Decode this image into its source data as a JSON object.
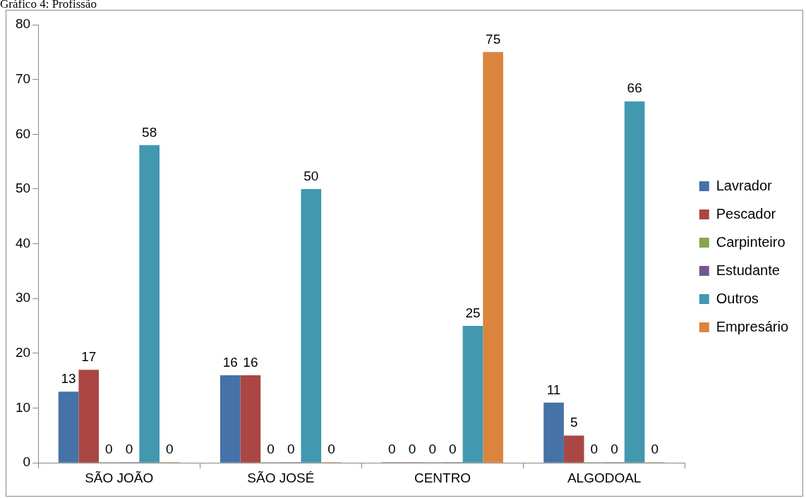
{
  "chart_data": {
    "type": "bar",
    "title": "Gráfico 4: Profissão",
    "categories": [
      "SÃO JOÃO",
      "SÃO JOSÉ",
      "CENTRO",
      "ALGODOAL"
    ],
    "series": [
      {
        "name": "Lavrador",
        "color": "#4572a7",
        "values": [
          13,
          16,
          0,
          11
        ]
      },
      {
        "name": "Pescador",
        "color": "#aa4643",
        "values": [
          17,
          16,
          0,
          5
        ]
      },
      {
        "name": "Carpinteiro",
        "color": "#89a54e",
        "values": [
          0,
          0,
          0,
          0
        ]
      },
      {
        "name": "Estudante",
        "color": "#71588f",
        "values": [
          0,
          0,
          0,
          0
        ]
      },
      {
        "name": "Outros",
        "color": "#4198af",
        "values": [
          58,
          50,
          25,
          66
        ]
      },
      {
        "name": "Empresário",
        "color": "#db843d",
        "values": [
          0,
          0,
          75,
          0
        ]
      }
    ],
    "ylim": [
      0,
      80
    ],
    "yticks": [
      0,
      10,
      20,
      30,
      40,
      50,
      60,
      70,
      80
    ],
    "grid": false,
    "legend": "right",
    "data_labels": true
  }
}
